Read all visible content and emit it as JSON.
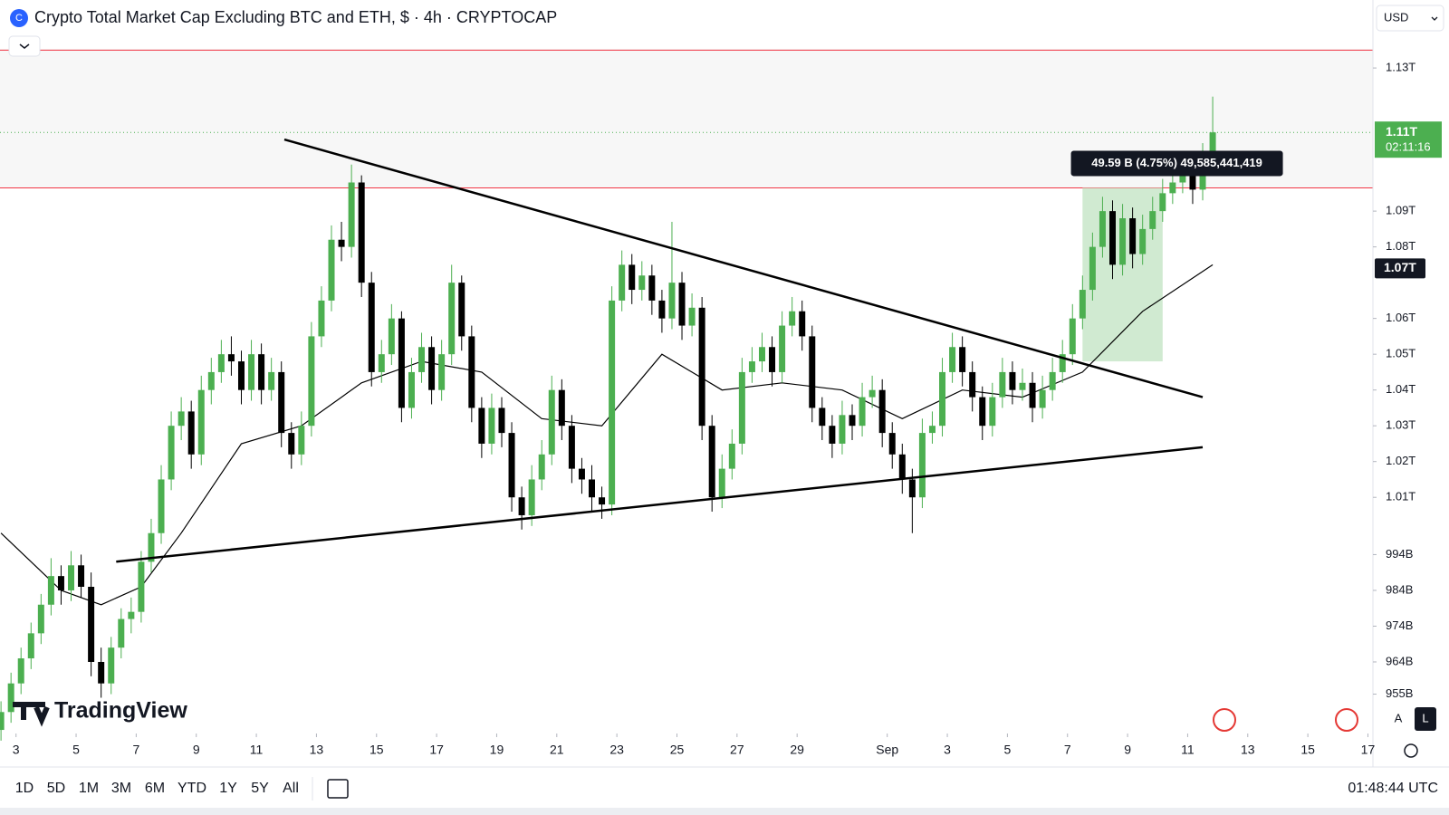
{
  "ui": {
    "title": "Crypto Total Market Cap Excluding BTC and ETH, $ · 4h · CRYPTOCAP",
    "currency": "USD",
    "logo": "TradingView",
    "ranges": [
      "1D",
      "5D",
      "1M",
      "3M",
      "6M",
      "YTD",
      "1Y",
      "5Y",
      "All"
    ],
    "clock": "01:48:44 UTC",
    "scale_buttons": [
      "A",
      "L"
    ],
    "countdown": "02:11:16",
    "measure_label": "49.59 B (4.75%) 49,585,441,419"
  },
  "chart_data": {
    "type": "candlestick",
    "title": "Crypto Total Market Cap Excluding BTC and ETH, $ · 4h · CRYPTOCAP",
    "up_color": "#4caf50",
    "down_color": "#000000",
    "ylim": [
      944,
      1149
    ],
    "xlim": [
      -0.1,
      137
    ],
    "yticks": [
      {
        "value": 1130,
        "label": "1.13T"
      },
      {
        "value": 1090,
        "label": "1.09T"
      },
      {
        "value": 1080,
        "label": "1.08T"
      },
      {
        "value": 1060,
        "label": "1.06T"
      },
      {
        "value": 1050,
        "label": "1.05T"
      },
      {
        "value": 1040,
        "label": "1.04T"
      },
      {
        "value": 1030,
        "label": "1.03T"
      },
      {
        "value": 1020,
        "label": "1.02T"
      },
      {
        "value": 1010,
        "label": "1.01T"
      },
      {
        "value": 994,
        "label": "994B"
      },
      {
        "value": 984,
        "label": "984B"
      },
      {
        "value": 974,
        "label": "974B"
      },
      {
        "value": 964,
        "label": "964B"
      },
      {
        "value": 955,
        "label": "955B"
      }
    ],
    "xticks": [
      {
        "value": 1.5,
        "label": "3"
      },
      {
        "value": 7.5,
        "label": "5"
      },
      {
        "value": 13.5,
        "label": "7"
      },
      {
        "value": 19.5,
        "label": "9"
      },
      {
        "value": 25.5,
        "label": "11"
      },
      {
        "value": 31.5,
        "label": "13"
      },
      {
        "value": 37.5,
        "label": "15"
      },
      {
        "value": 43.5,
        "label": "17"
      },
      {
        "value": 49.5,
        "label": "19"
      },
      {
        "value": 55.5,
        "label": "21"
      },
      {
        "value": 61.5,
        "label": "23"
      },
      {
        "value": 67.5,
        "label": "25"
      },
      {
        "value": 73.5,
        "label": "27"
      },
      {
        "value": 79.5,
        "label": "29"
      },
      {
        "value": 88.5,
        "label": "Sep"
      },
      {
        "value": 94.5,
        "label": "3"
      },
      {
        "value": 100.5,
        "label": "5"
      },
      {
        "value": 106.5,
        "label": "7"
      },
      {
        "value": 112.5,
        "label": "9"
      },
      {
        "value": 118.5,
        "label": "11"
      },
      {
        "value": 124.5,
        "label": "13"
      },
      {
        "value": 130.5,
        "label": "15"
      },
      {
        "value": 136.5,
        "label": "17"
      }
    ],
    "last_price": {
      "value": 1112,
      "label": "1.11T"
    },
    "marker_label": {
      "value": 1074,
      "label": "1.07T"
    },
    "hlines": [
      1135,
      1096.5
    ],
    "box": {
      "x": [
        108,
        116
      ],
      "values": [
        1048,
        1096.5
      ],
      "color": "#c8e6c9"
    },
    "ma": {
      "color": "#000000",
      "x": [
        0,
        6,
        10,
        14,
        18,
        24,
        30,
        36,
        42,
        48,
        54,
        60,
        66,
        72,
        78,
        84,
        90,
        96,
        102,
        108,
        114,
        121
      ],
      "values": [
        1000,
        984,
        980,
        985,
        1000,
        1025,
        1030,
        1042,
        1048,
        1045,
        1032,
        1030,
        1050,
        1040,
        1042,
        1040,
        1032,
        1040,
        1038,
        1045,
        1062,
        1075
      ]
    },
    "trendlines": [
      {
        "x": [
          28.3,
          120
        ],
        "values": [
          1110,
          1038
        ]
      },
      {
        "x": [
          11.5,
          120
        ],
        "values": [
          992,
          1024
        ]
      }
    ],
    "ohlc": [
      [
        945,
        953,
        942,
        950
      ],
      [
        950,
        961,
        947,
        958
      ],
      [
        958,
        968,
        955,
        965
      ],
      [
        965,
        975,
        962,
        972
      ],
      [
        972,
        983,
        969,
        980
      ],
      [
        980,
        993,
        977,
        988
      ],
      [
        988,
        991,
        980,
        984
      ],
      [
        984,
        995,
        981,
        991
      ],
      [
        991,
        994,
        982,
        985
      ],
      [
        985,
        989,
        960,
        964
      ],
      [
        964,
        968,
        954,
        958
      ],
      [
        958,
        971,
        955,
        968
      ],
      [
        968,
        979,
        965,
        976
      ],
      [
        976,
        982,
        972,
        978
      ],
      [
        978,
        995,
        975,
        992
      ],
      [
        992,
        1004,
        989,
        1000
      ],
      [
        1000,
        1019,
        997,
        1015
      ],
      [
        1015,
        1034,
        1012,
        1030
      ],
      [
        1030,
        1038,
        1026,
        1034
      ],
      [
        1034,
        1037,
        1018,
        1022
      ],
      [
        1022,
        1044,
        1019,
        1040
      ],
      [
        1040,
        1049,
        1036,
        1045
      ],
      [
        1045,
        1054,
        1042,
        1050
      ],
      [
        1050,
        1055,
        1044,
        1048
      ],
      [
        1048,
        1051,
        1036,
        1040
      ],
      [
        1040,
        1054,
        1037,
        1050
      ],
      [
        1050,
        1053,
        1036,
        1040
      ],
      [
        1040,
        1049,
        1037,
        1045
      ],
      [
        1045,
        1048,
        1024,
        1028
      ],
      [
        1028,
        1031,
        1018,
        1022
      ],
      [
        1022,
        1034,
        1019,
        1030
      ],
      [
        1030,
        1059,
        1027,
        1055
      ],
      [
        1055,
        1069,
        1052,
        1065
      ],
      [
        1065,
        1086,
        1062,
        1082
      ],
      [
        1082,
        1087,
        1076,
        1080
      ],
      [
        1080,
        1103,
        1077,
        1098
      ],
      [
        1098,
        1100,
        1066,
        1070
      ],
      [
        1070,
        1073,
        1041,
        1045
      ],
      [
        1045,
        1054,
        1042,
        1050
      ],
      [
        1050,
        1064,
        1047,
        1060
      ],
      [
        1060,
        1062,
        1031,
        1035
      ],
      [
        1035,
        1049,
        1032,
        1045
      ],
      [
        1045,
        1056,
        1042,
        1052
      ],
      [
        1052,
        1055,
        1036,
        1040
      ],
      [
        1040,
        1054,
        1037,
        1050
      ],
      [
        1050,
        1075,
        1047,
        1070
      ],
      [
        1070,
        1072,
        1051,
        1055
      ],
      [
        1055,
        1058,
        1031,
        1035
      ],
      [
        1035,
        1038,
        1021,
        1025
      ],
      [
        1025,
        1039,
        1022,
        1035
      ],
      [
        1035,
        1038,
        1024,
        1028
      ],
      [
        1028,
        1031,
        1006,
        1010
      ],
      [
        1010,
        1013,
        1001,
        1005
      ],
      [
        1005,
        1019,
        1002,
        1015
      ],
      [
        1015,
        1026,
        1012,
        1022
      ],
      [
        1022,
        1044,
        1019,
        1040
      ],
      [
        1040,
        1043,
        1026,
        1030
      ],
      [
        1030,
        1033,
        1014,
        1018
      ],
      [
        1018,
        1021,
        1011,
        1015
      ],
      [
        1015,
        1019,
        1006,
        1010
      ],
      [
        1010,
        1013,
        1004,
        1008
      ],
      [
        1008,
        1069,
        1005,
        1065
      ],
      [
        1065,
        1079,
        1062,
        1075
      ],
      [
        1075,
        1078,
        1064,
        1068
      ],
      [
        1068,
        1076,
        1065,
        1072
      ],
      [
        1072,
        1075,
        1061,
        1065
      ],
      [
        1065,
        1068,
        1056,
        1060
      ],
      [
        1060,
        1087,
        1057,
        1070
      ],
      [
        1070,
        1073,
        1054,
        1058
      ],
      [
        1058,
        1067,
        1055,
        1063
      ],
      [
        1063,
        1066,
        1026,
        1030
      ],
      [
        1030,
        1033,
        1006,
        1010
      ],
      [
        1010,
        1022,
        1007,
        1018
      ],
      [
        1018,
        1029,
        1015,
        1025
      ],
      [
        1025,
        1049,
        1022,
        1045
      ],
      [
        1045,
        1052,
        1042,
        1048
      ],
      [
        1048,
        1056,
        1045,
        1052
      ],
      [
        1052,
        1055,
        1041,
        1045
      ],
      [
        1045,
        1062,
        1042,
        1058
      ],
      [
        1058,
        1066,
        1055,
        1062
      ],
      [
        1062,
        1065,
        1051,
        1055
      ],
      [
        1055,
        1058,
        1031,
        1035
      ],
      [
        1035,
        1038,
        1026,
        1030
      ],
      [
        1030,
        1033,
        1021,
        1025
      ],
      [
        1025,
        1037,
        1022,
        1033
      ],
      [
        1033,
        1036,
        1026,
        1030
      ],
      [
        1030,
        1042,
        1027,
        1038
      ],
      [
        1038,
        1044,
        1035,
        1040
      ],
      [
        1040,
        1043,
        1024,
        1028
      ],
      [
        1028,
        1031,
        1018,
        1022
      ],
      [
        1022,
        1025,
        1011,
        1015
      ],
      [
        1015,
        1018,
        1000,
        1010
      ],
      [
        1010,
        1032,
        1007,
        1028
      ],
      [
        1028,
        1034,
        1025,
        1030
      ],
      [
        1030,
        1049,
        1027,
        1045
      ],
      [
        1045,
        1056,
        1042,
        1052
      ],
      [
        1052,
        1055,
        1041,
        1045
      ],
      [
        1045,
        1048,
        1034,
        1038
      ],
      [
        1038,
        1041,
        1026,
        1030
      ],
      [
        1030,
        1042,
        1027,
        1038
      ],
      [
        1038,
        1049,
        1035,
        1045
      ],
      [
        1045,
        1048,
        1036,
        1040
      ],
      [
        1040,
        1046,
        1037,
        1042
      ],
      [
        1042,
        1045,
        1031,
        1035
      ],
      [
        1035,
        1044,
        1032,
        1040
      ],
      [
        1040,
        1049,
        1037,
        1045
      ],
      [
        1045,
        1054,
        1042,
        1050
      ],
      [
        1050,
        1064,
        1047,
        1060
      ],
      [
        1060,
        1072,
        1057,
        1068
      ],
      [
        1068,
        1084,
        1065,
        1080
      ],
      [
        1080,
        1094,
        1077,
        1090
      ],
      [
        1090,
        1093,
        1071,
        1075
      ],
      [
        1075,
        1092,
        1072,
        1088
      ],
      [
        1088,
        1091,
        1074,
        1078
      ],
      [
        1078,
        1089,
        1075,
        1085
      ],
      [
        1085,
        1094,
        1082,
        1090
      ],
      [
        1090,
        1099,
        1087,
        1095
      ],
      [
        1095,
        1102,
        1092,
        1098
      ],
      [
        1098,
        1104,
        1095,
        1100
      ],
      [
        1100,
        1103,
        1092,
        1096
      ],
      [
        1096,
        1109,
        1093,
        1105
      ],
      [
        1105,
        1122,
        1102,
        1112
      ]
    ]
  }
}
